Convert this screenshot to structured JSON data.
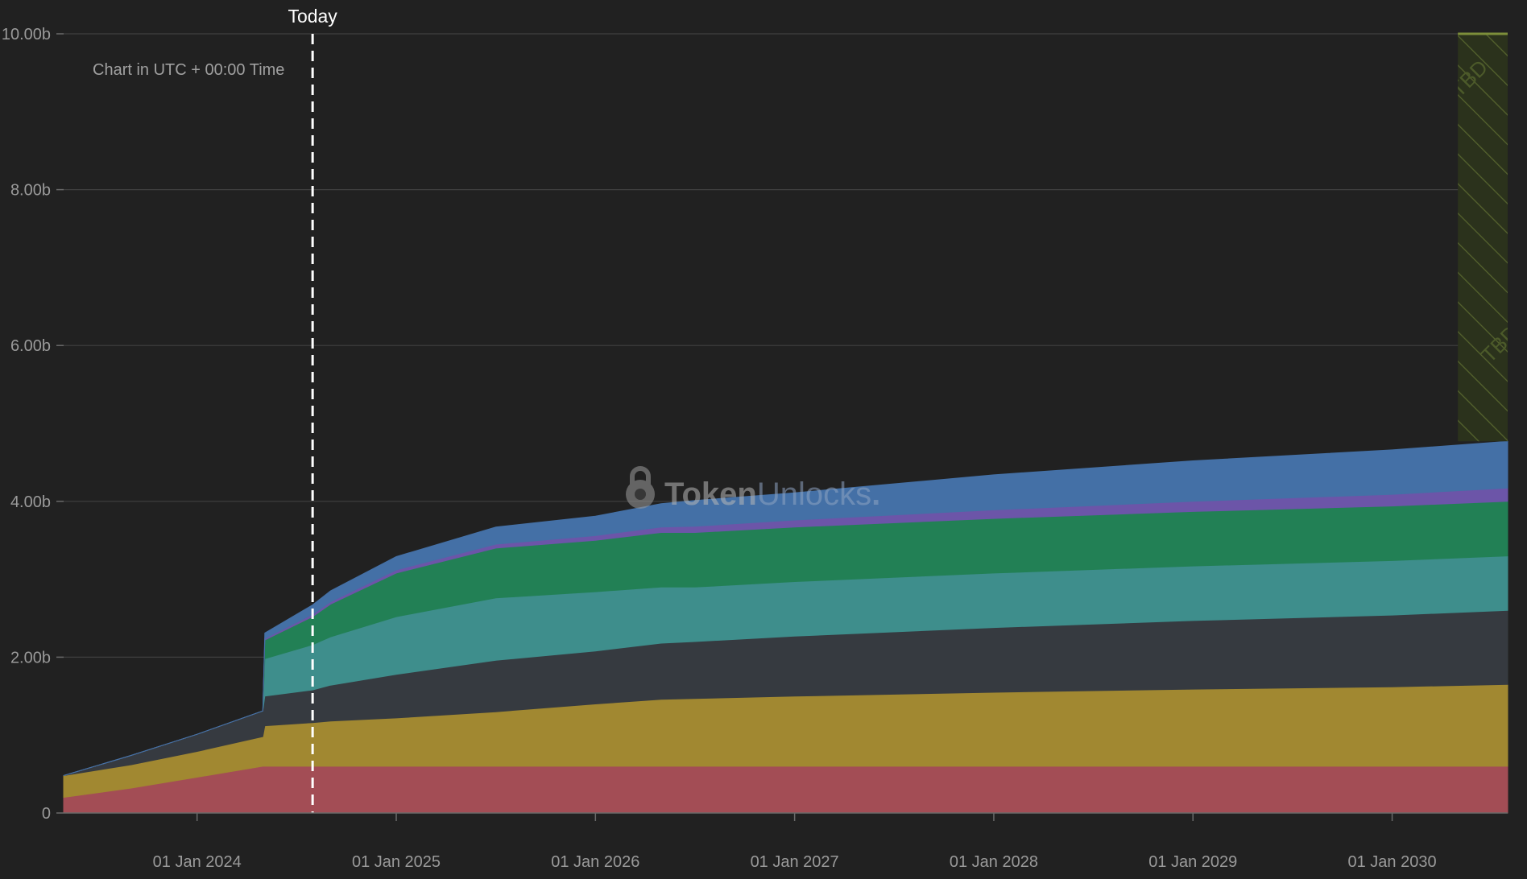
{
  "chart_data": {
    "type": "area",
    "stacked": true,
    "note": "Chart in UTC + 00:00 Time",
    "watermark": {
      "part1": "Token",
      "part2": "Unlocks",
      "dot": "."
    },
    "today": {
      "label": "Today",
      "x": 2024.58
    },
    "tbd_label": "TBD",
    "tbd_range": [
      2030.33,
      2030.58
    ],
    "xlim": [
      2023.33,
      2030.58
    ],
    "ylim": [
      0,
      10
    ],
    "grid": true,
    "y_ticks": [
      {
        "value": 0,
        "label": "0"
      },
      {
        "value": 2,
        "label": "2.00b"
      },
      {
        "value": 4,
        "label": "4.00b"
      },
      {
        "value": 6,
        "label": "6.00b"
      },
      {
        "value": 8,
        "label": "8.00b"
      },
      {
        "value": 10,
        "label": "10.00b"
      }
    ],
    "x_ticks": [
      {
        "value": 2024,
        "label": "01 Jan 2024"
      },
      {
        "value": 2025,
        "label": "01 Jan 2025"
      },
      {
        "value": 2026,
        "label": "01 Jan 2026"
      },
      {
        "value": 2027,
        "label": "01 Jan 2027"
      },
      {
        "value": 2028,
        "label": "01 Jan 2028"
      },
      {
        "value": 2029,
        "label": "01 Jan 2029"
      },
      {
        "value": 2030,
        "label": "01 Jan 2030"
      }
    ],
    "x": [
      2023.33,
      2023.67,
      2024.0,
      2024.33,
      2024.34,
      2024.58,
      2024.67,
      2025.0,
      2025.5,
      2026.0,
      2026.33,
      2026.5,
      2027.0,
      2028.0,
      2029.0,
      2030.0,
      2030.58
    ],
    "series": [
      {
        "color": "#a34d55",
        "values": [
          0.2,
          0.32,
          0.46,
          0.6,
          0.6,
          0.6,
          0.6,
          0.6,
          0.6,
          0.6,
          0.6,
          0.6,
          0.6,
          0.6,
          0.6,
          0.6,
          0.6
        ]
      },
      {
        "color": "#a18831",
        "values": [
          0.28,
          0.3,
          0.33,
          0.38,
          0.52,
          0.56,
          0.58,
          0.62,
          0.7,
          0.8,
          0.86,
          0.87,
          0.9,
          0.95,
          0.99,
          1.02,
          1.05
        ]
      },
      {
        "color": "#363a40",
        "values": [
          0.0,
          0.12,
          0.22,
          0.33,
          0.38,
          0.42,
          0.46,
          0.56,
          0.66,
          0.68,
          0.72,
          0.73,
          0.77,
          0.83,
          0.88,
          0.92,
          0.95
        ]
      },
      {
        "color": "#3e8e8c",
        "values": [
          0.0,
          0.0,
          0.0,
          0.0,
          0.48,
          0.58,
          0.62,
          0.74,
          0.8,
          0.76,
          0.72,
          0.7,
          0.7,
          0.7,
          0.7,
          0.7,
          0.7
        ]
      },
      {
        "color": "#228055",
        "values": [
          0.0,
          0.0,
          0.0,
          0.0,
          0.24,
          0.36,
          0.42,
          0.56,
          0.64,
          0.66,
          0.7,
          0.7,
          0.7,
          0.7,
          0.7,
          0.7,
          0.7
        ]
      },
      {
        "color": "#6c55a8",
        "values": [
          0.0,
          0.0,
          0.0,
          0.0,
          0.02,
          0.03,
          0.03,
          0.04,
          0.05,
          0.06,
          0.07,
          0.08,
          0.09,
          0.11,
          0.13,
          0.15,
          0.17
        ]
      },
      {
        "color": "#4470a6",
        "values": [
          0.0,
          0.0,
          0.0,
          0.0,
          0.07,
          0.12,
          0.14,
          0.17,
          0.22,
          0.25,
          0.3,
          0.33,
          0.35,
          0.45,
          0.52,
          0.57,
          0.6
        ]
      }
    ]
  }
}
